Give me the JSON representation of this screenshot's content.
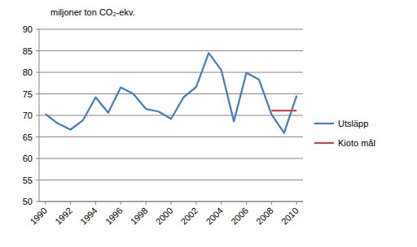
{
  "chart_data": {
    "type": "line",
    "y_label": "miljoner ton CO₂-ekv.",
    "x": [
      1990,
      1991,
      1992,
      1993,
      1994,
      1995,
      1996,
      1997,
      1998,
      1999,
      2000,
      2001,
      2002,
      2003,
      2004,
      2005,
      2006,
      2007,
      2008,
      2009,
      2010
    ],
    "series": [
      {
        "name": "Utsläpp",
        "color": "#4a7ebb",
        "values": [
          70.3,
          68.1,
          66.7,
          68.9,
          74.2,
          70.6,
          76.5,
          75.0,
          71.5,
          70.9,
          69.2,
          74.2,
          76.6,
          84.5,
          80.5,
          68.6,
          79.9,
          78.3,
          70.2,
          65.9,
          74.6
        ]
      },
      {
        "name": "Kioto mål",
        "color": "#be4b48",
        "values": [
          null,
          null,
          null,
          null,
          null,
          null,
          null,
          null,
          null,
          null,
          null,
          null,
          null,
          null,
          null,
          null,
          null,
          null,
          71.1,
          71.1,
          71.1
        ]
      }
    ],
    "xlim": [
      1989.5,
      2010.5
    ],
    "xticks": [
      1990,
      1992,
      1994,
      1996,
      1998,
      2000,
      2002,
      2004,
      2006,
      2008,
      2010
    ],
    "ylim": [
      50,
      90
    ],
    "yticks": [
      50,
      55,
      60,
      65,
      70,
      75,
      80,
      85,
      90
    ],
    "grid": "y",
    "legend": "right"
  }
}
